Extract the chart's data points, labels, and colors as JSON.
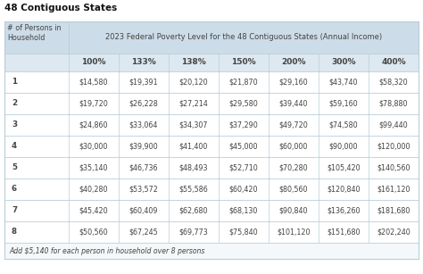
{
  "title": "48 Contiguous States",
  "header_label": "# of Persons in\nHousehold",
  "header_span": "2023 Federal Poverty Level for the 48 Contiguous States (Annual Income)",
  "col_headers": [
    "100%",
    "133%",
    "138%",
    "150%",
    "200%",
    "300%",
    "400%"
  ],
  "row_labels": [
    "1",
    "2",
    "3",
    "4",
    "5",
    "6",
    "7",
    "8"
  ],
  "data": [
    [
      "$14,580",
      "$19,391",
      "$20,120",
      "$21,870",
      "$29,160",
      "$43,740",
      "$58,320"
    ],
    [
      "$19,720",
      "$26,228",
      "$27,214",
      "$29,580",
      "$39,440",
      "$59,160",
      "$78,880"
    ],
    [
      "$24,860",
      "$33,064",
      "$34,307",
      "$37,290",
      "$49,720",
      "$74,580",
      "$99,440"
    ],
    [
      "$30,000",
      "$39,900",
      "$41,400",
      "$45,000",
      "$60,000",
      "$90,000",
      "$120,000"
    ],
    [
      "$35,140",
      "$46,736",
      "$48,493",
      "$52,710",
      "$70,280",
      "$105,420",
      "$140,560"
    ],
    [
      "$40,280",
      "$53,572",
      "$55,586",
      "$60,420",
      "$80,560",
      "$120,840",
      "$161,120"
    ],
    [
      "$45,420",
      "$60,409",
      "$62,680",
      "$68,130",
      "$90,840",
      "$136,260",
      "$181,680"
    ],
    [
      "$50,560",
      "$67,245",
      "$69,773",
      "$75,840",
      "$101,120",
      "$151,680",
      "$202,240"
    ]
  ],
  "footer": "Add $5,140 for each person in household over 8 persons",
  "header_bg": "#ccdce8",
  "subheader_bg": "#dde8f0",
  "row_bg_white": "#ffffff",
  "border_color": "#b8cdd9",
  "text_color": "#444444",
  "title_color": "#111111",
  "footer_bg": "#f5f8fa",
  "title_fontsize": 7.5,
  "header_fontsize": 5.8,
  "span_fontsize": 6.0,
  "col_hdr_fontsize": 6.5,
  "data_fontsize": 5.8,
  "footer_fontsize": 5.6
}
